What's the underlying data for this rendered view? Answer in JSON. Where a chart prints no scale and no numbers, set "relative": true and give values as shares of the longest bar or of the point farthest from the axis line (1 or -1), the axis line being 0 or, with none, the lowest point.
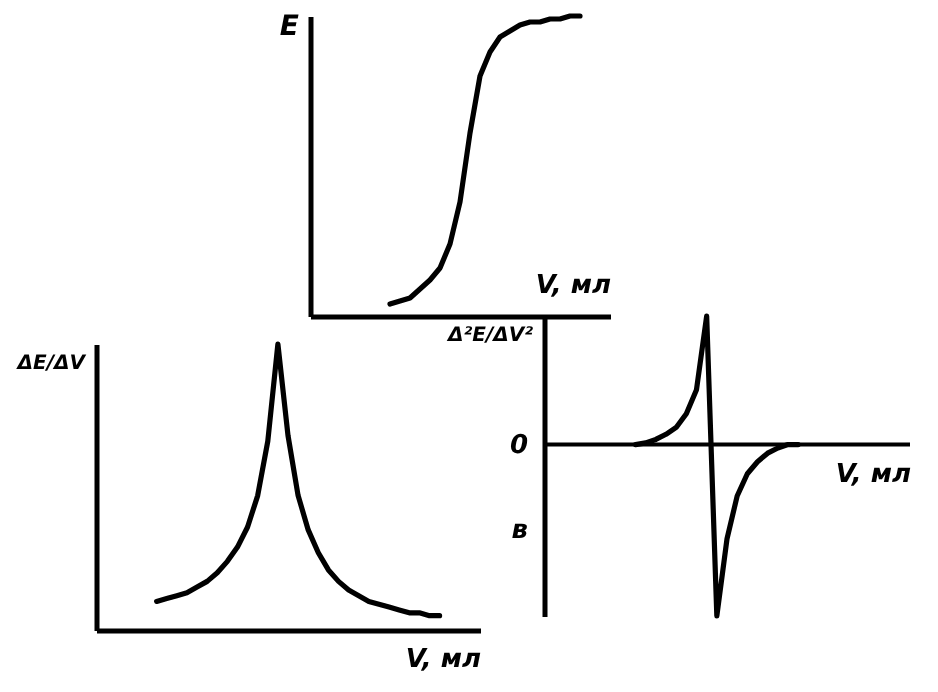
{
  "chart_data": [
    {
      "type": "line",
      "ylabel": "E",
      "xlabel": "V, мл",
      "relative": true,
      "categories": [
        null,
        null,
        null,
        null,
        null,
        null,
        null,
        null,
        null,
        null,
        null,
        null,
        null,
        null,
        null,
        null,
        null,
        null,
        null,
        null,
        null,
        null,
        null,
        null,
        null,
        null,
        null,
        null,
        null,
        null,
        null
      ],
      "series": [
        {
          "color": "#000000",
          "values": [
            null,
            null,
            null,
            null,
            null,
            null,
            null,
            null,
            0.04,
            0.05,
            0.06,
            0.09,
            0.12,
            0.16,
            0.24,
            0.38,
            0.61,
            0.8,
            0.88,
            0.93,
            0.95,
            0.97,
            0.98,
            0.98,
            0.99,
            0.99,
            1,
            1,
            null,
            null,
            null
          ]
        }
      ]
    },
    {
      "type": "line",
      "ylabel": "ΔE/ΔV",
      "xlabel": "V, мл",
      "relative": true,
      "categories": [
        null,
        null,
        null,
        null,
        null,
        null,
        null,
        null,
        null,
        null,
        null,
        null,
        null,
        null,
        null,
        null,
        null,
        null,
        null,
        null,
        null,
        null,
        null,
        null,
        null,
        null,
        null,
        null,
        null,
        null,
        null,
        null,
        null,
        null,
        null,
        null,
        null,
        null,
        null
      ],
      "series": [
        {
          "color": "#000000",
          "values": [
            null,
            null,
            null,
            null,
            null,
            null,
            0.1,
            0.11,
            0.12,
            0.13,
            0.15,
            0.17,
            0.2,
            0.24,
            0.29,
            0.36,
            0.47,
            0.66,
            1,
            0.68,
            0.47,
            0.35,
            0.27,
            0.21,
            0.17,
            0.14,
            0.12,
            0.1,
            0.09,
            0.08,
            0.07,
            0.06,
            0.06,
            0.05,
            0.05,
            null,
            null,
            null,
            null
          ]
        }
      ]
    },
    {
      "type": "line",
      "ylabel": "Δ²E/ΔV²",
      "xlabel": "V, мл",
      "relative": true,
      "annotations": [
        "0",
        "в"
      ],
      "categories": [
        null,
        null,
        null,
        null,
        null,
        null,
        null,
        null,
        null,
        null,
        null,
        null,
        null,
        null,
        null,
        null,
        null,
        null,
        null,
        null,
        null,
        null,
        null,
        null,
        null,
        null,
        null,
        null,
        null,
        null,
        null,
        null,
        null,
        null,
        null,
        null,
        null
      ],
      "series": [
        {
          "color": "#000000",
          "values": [
            null,
            null,
            null,
            null,
            null,
            null,
            null,
            null,
            null,
            0,
            0.01,
            0.03,
            0.06,
            0.1,
            0.18,
            0.32,
            0.75,
            -1,
            -0.55,
            -0.3,
            -0.17,
            -0.1,
            -0.05,
            -0.02,
            0,
            0,
            null,
            null,
            null,
            null,
            null,
            null,
            null,
            null,
            null,
            null,
            null
          ]
        }
      ]
    }
  ]
}
